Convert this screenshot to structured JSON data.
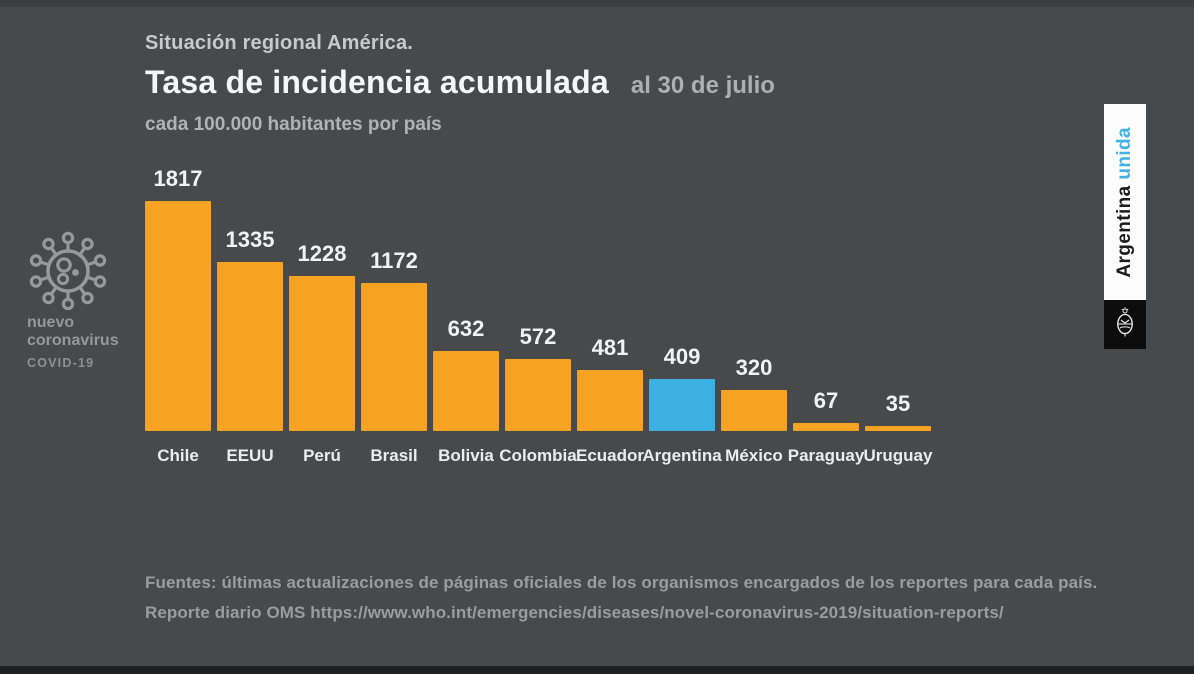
{
  "page": {
    "background": "#47494b"
  },
  "header": {
    "kicker": "Situación regional América.",
    "title": "Tasa de incidencia acumulada",
    "date_suffix": "al 30 de julio",
    "subtitle": "cada 100.000 habitantes por país"
  },
  "badge": {
    "line1": "nuevo",
    "line2": "coronavirus",
    "line3": "COVID-19",
    "icon": "coronavirus-icon",
    "color": "#96989b"
  },
  "banner": {
    "word_black": "Argentina ",
    "word_blue": "unida",
    "blue": "#41b2e6",
    "emblem": "argentina-coat-of-arms"
  },
  "chart_data": {
    "type": "bar",
    "title": "Tasa de incidencia acumulada al 30 de julio",
    "subtitle": "cada 100.000 habitantes por país",
    "categories": [
      "Chile",
      "EEUU",
      "Perú",
      "Brasil",
      "Bolivia",
      "Colombia",
      "Ecuador",
      "Argentina",
      "México",
      "Paraguay",
      "Uruguay"
    ],
    "values": [
      1817,
      1335,
      1228,
      1172,
      632,
      572,
      481,
      409,
      320,
      67,
      35
    ],
    "bar_color": "#f6a323",
    "highlight_category": "Argentina",
    "highlight_color": "#3cb1e1",
    "value_labels": true,
    "axis_lines": false,
    "gridlines": false,
    "legend": "none",
    "xlabel": "",
    "ylabel": "",
    "ylim": [
      0,
      1817
    ]
  },
  "footer": {
    "line1": "Fuentes: últimas actualizaciones de páginas oficiales de los organismos encargados de los reportes para cada país.",
    "line2": "Reporte diario OMS https://www.who.int/emergencies/diseases/novel-coronavirus-2019/situation-reports/"
  }
}
